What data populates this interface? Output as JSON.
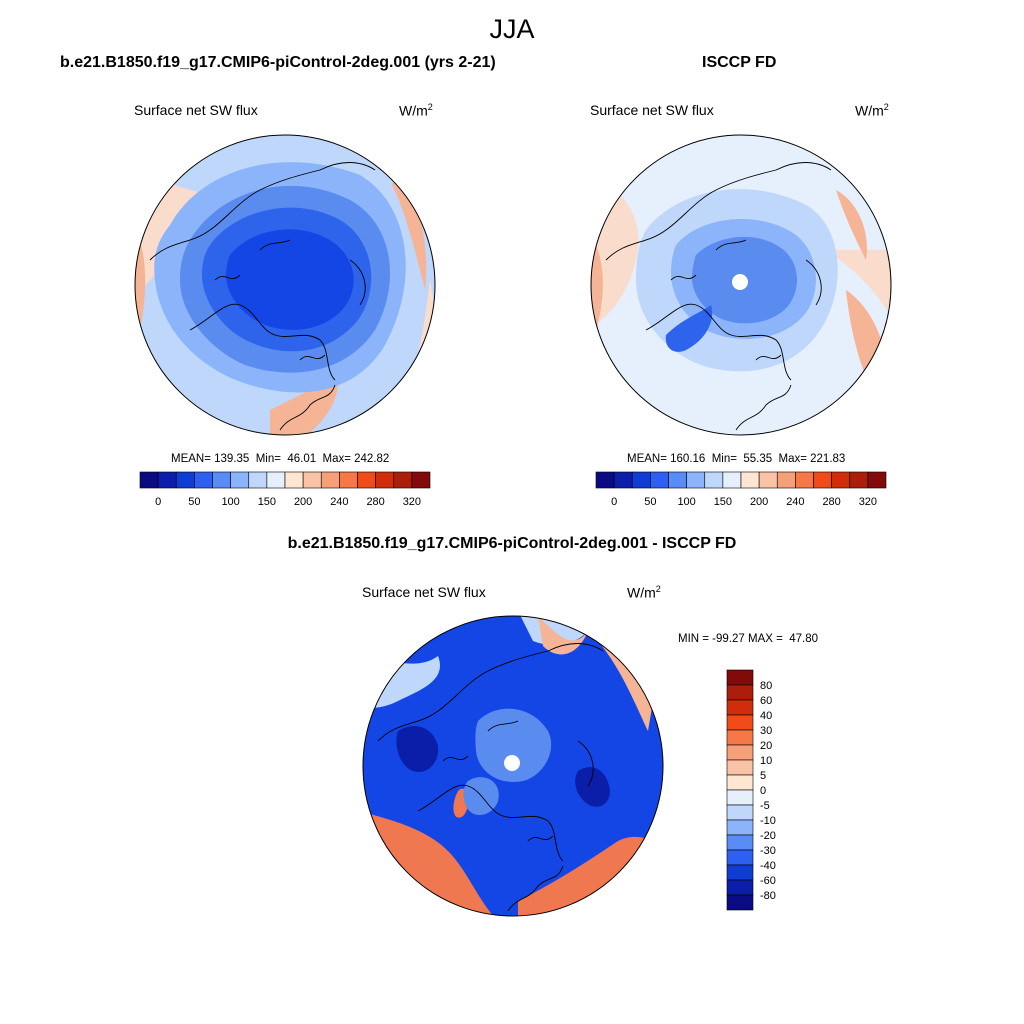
{
  "season_title": "JJA",
  "colors": {
    "scale": [
      "#0a0a82",
      "#0a1eaa",
      "#0f3cd2",
      "#2d5ff0",
      "#5a8cf5",
      "#8cb4fa",
      "#bed7fa",
      "#e6f0fc",
      "#ffe6d2",
      "#fac3a5",
      "#f5a078",
      "#f57846",
      "#f04b19",
      "#d22d0a",
      "#aa1e0a",
      "#820a0a"
    ],
    "model_colors": {
      "center": "#1446e6",
      "inner": "#2d64eb",
      "mid": "#5a8cf0",
      "outer": "#8cb4fa",
      "rim": "#bed7fa",
      "land_warm": "#f5b496",
      "land_pale": "#fadccd"
    },
    "obs_colors": {
      "center": "#2d64eb",
      "inner": "#5a8cf0",
      "mid": "#8cb4fa",
      "outer": "#bed7fa",
      "rim": "#e6f0fc",
      "land_warm": "#f5b496",
      "land_pale": "#fadccd"
    },
    "diff_colors": {
      "deep": "#0a1eaa",
      "base": "#1446e6",
      "light": "#5a8cf0",
      "pale": "#bed7fa",
      "warm": "#f07850",
      "warm_pale": "#f5b496"
    }
  },
  "panels": [
    {
      "id": "model",
      "title": "b.e21.B1850.f19_g17.CMIP6-piControl-2deg.001 (yrs 2-21)",
      "left_label": "Surface net SW flux",
      "units": "W/m",
      "units_sup": "2",
      "stats": "MEAN= 139.35  Min=  46.01  Max= 242.82"
    },
    {
      "id": "obs",
      "title": "ISCCP FD",
      "left_label": "Surface net SW flux",
      "units": "W/m",
      "units_sup": "2",
      "stats": "MEAN= 160.16  Min=  55.35  Max= 221.83"
    },
    {
      "id": "diff",
      "title": "b.e21.B1850.f19_g17.CMIP6-piControl-2deg.001 - ISCCP FD",
      "left_label": "Surface net SW flux",
      "units": "W/m",
      "units_sup": "2",
      "stats": "MIN = -99.27 MAX =  47.80"
    }
  ],
  "colorbar_horizontal": {
    "labels": [
      "0",
      "50",
      "100",
      "150",
      "200",
      "240",
      "280",
      "320"
    ],
    "colors": [
      "#0a0a82",
      "#0a1eaa",
      "#0f3cd2",
      "#2d5ff0",
      "#5a8cf5",
      "#8cb4fa",
      "#bed7fa",
      "#e6f0fc",
      "#ffe6d2",
      "#fac3a5",
      "#f5a078",
      "#f57846",
      "#f04b19",
      "#d22d0a",
      "#aa1e0a",
      "#820a0a"
    ]
  },
  "colorbar_vertical": {
    "labels": [
      "80",
      "60",
      "40",
      "30",
      "20",
      "10",
      "5",
      "0",
      "-5",
      "-10",
      "-20",
      "-30",
      "-40",
      "-60",
      "-80"
    ],
    "colors": [
      "#820a0a",
      "#aa1e0a",
      "#d22d0a",
      "#f04b19",
      "#f57846",
      "#f5a078",
      "#fac3a5",
      "#ffe6d2",
      "#e6f0fc",
      "#bed7fa",
      "#8cb4fa",
      "#5a8cf5",
      "#2d5ff0",
      "#0f3cd2",
      "#0a1eaa",
      "#0a0a82"
    ]
  }
}
